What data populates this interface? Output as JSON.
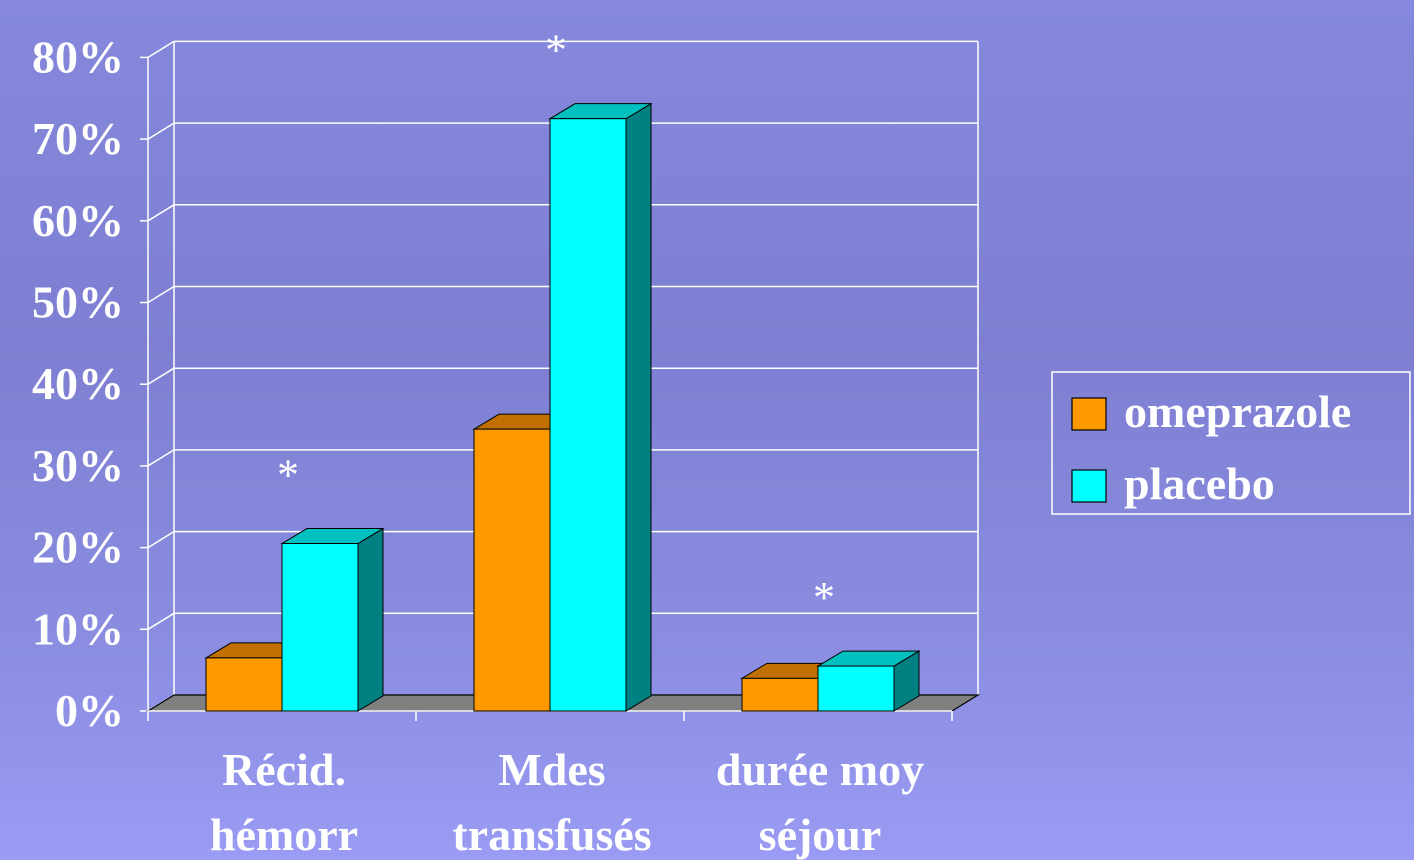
{
  "chart_data": {
    "type": "bar",
    "three_d": true,
    "categories": [
      [
        "Récid.",
        "hémorr"
      ],
      [
        "Mdes",
        "transfusés"
      ],
      [
        "durée moy",
        "séjour"
      ]
    ],
    "series": [
      {
        "name": "omeprazole",
        "values": [
          6.5,
          34.5,
          4.0
        ],
        "color": "#ff9900",
        "top_color": "#c07000",
        "side_color": "#c07000"
      },
      {
        "name": "placebo",
        "values": [
          20.5,
          72.5,
          5.5
        ],
        "color": "#00ffff",
        "top_color": "#00c0c0",
        "side_color": "#008080"
      }
    ],
    "y_ticks": [
      "0%",
      "10%",
      "20%",
      "30%",
      "40%",
      "50%",
      "60%",
      "70%",
      "80%"
    ],
    "ylim": [
      0,
      80
    ],
    "grid": true,
    "legend_position": "right",
    "annotations": [
      {
        "category": 0,
        "text": "*"
      },
      {
        "category": 1,
        "text": "*"
      },
      {
        "category": 2,
        "text": "*"
      }
    ],
    "floor_color": "#808080",
    "grid_color": "#ffffff"
  }
}
